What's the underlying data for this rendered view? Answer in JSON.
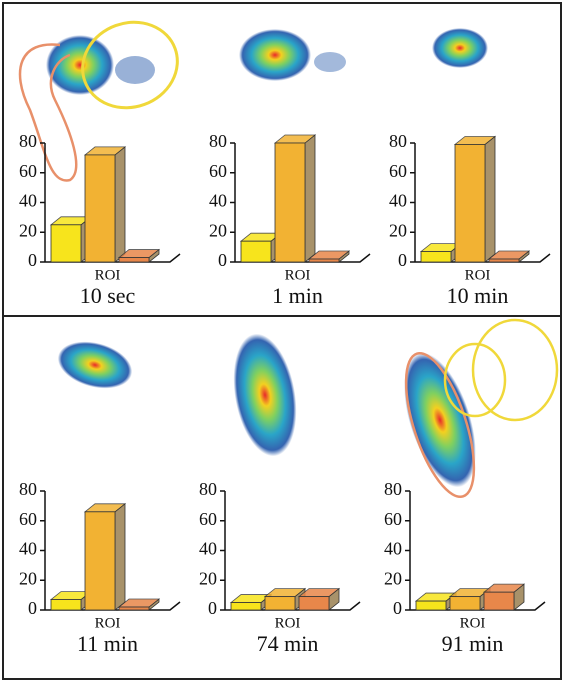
{
  "chart_data": [
    {
      "type": "bar",
      "title": "10 sec",
      "x_label": "ROI",
      "categories": [
        null,
        null,
        null
      ],
      "values": [
        25,
        72,
        3
      ],
      "colors": [
        "#f7e41c",
        "#f2b233",
        "#e8874a"
      ],
      "ylim": [
        0,
        80
      ],
      "yticks": [
        0,
        20,
        40,
        60,
        80
      ]
    },
    {
      "type": "bar",
      "title": "1 min",
      "x_label": "ROI",
      "categories": [
        null,
        null,
        null
      ],
      "values": [
        14,
        80,
        2
      ],
      "colors": [
        "#f7e41c",
        "#f2b233",
        "#e8874a"
      ],
      "ylim": [
        0,
        80
      ],
      "yticks": [
        0,
        20,
        40,
        60,
        80
      ]
    },
    {
      "type": "bar",
      "title": "10 min",
      "x_label": "ROI",
      "categories": [
        null,
        null,
        null
      ],
      "values": [
        7,
        79,
        2
      ],
      "colors": [
        "#f7e41c",
        "#f2b233",
        "#e8874a"
      ],
      "ylim": [
        0,
        80
      ],
      "yticks": [
        0,
        20,
        40,
        60,
        80
      ]
    },
    {
      "type": "bar",
      "title": "11 min",
      "x_label": "ROI",
      "categories": [
        null,
        null,
        null
      ],
      "values": [
        7,
        66,
        2
      ],
      "colors": [
        "#f7e41c",
        "#f2b233",
        "#e8874a"
      ],
      "ylim": [
        0,
        80
      ],
      "yticks": [
        0,
        20,
        40,
        60,
        80
      ]
    },
    {
      "type": "bar",
      "title": "74 min",
      "x_label": "ROI",
      "categories": [
        null,
        null,
        null
      ],
      "values": [
        5,
        9,
        9
      ],
      "colors": [
        "#f7e41c",
        "#f2b233",
        "#e8874a"
      ],
      "ylim": [
        0,
        80
      ],
      "yticks": [
        0,
        20,
        40,
        60,
        80
      ]
    },
    {
      "type": "bar",
      "title": "91 min",
      "x_label": "ROI",
      "categories": [
        null,
        null,
        null
      ],
      "values": [
        6,
        9,
        12
      ],
      "colors": [
        "#f7e41c",
        "#f2b233",
        "#e8874a"
      ],
      "ylim": [
        0,
        80
      ],
      "yticks": [
        0,
        20,
        40,
        60,
        80
      ]
    }
  ]
}
